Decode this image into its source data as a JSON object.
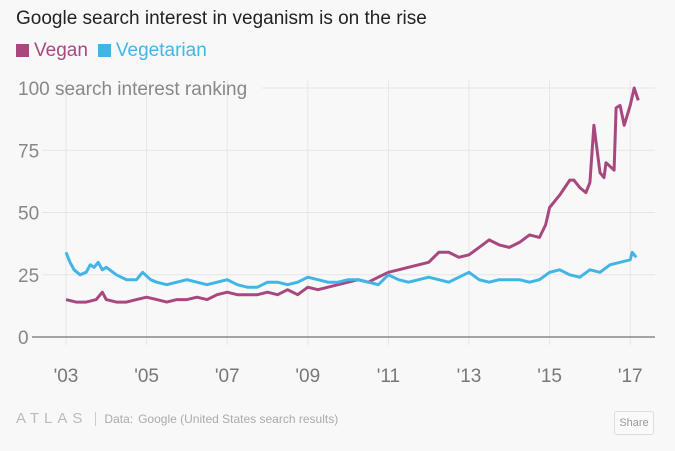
{
  "chart_data": {
    "type": "line",
    "title": "Google search interest in veganism is on the rise",
    "ylabel": "search interest ranking",
    "ylim": [
      0,
      100
    ],
    "yticks": [
      0,
      25,
      50,
      75,
      100
    ],
    "xlim": [
      2002.5,
      2017.6
    ],
    "xticks": [
      2003,
      2005,
      2007,
      2009,
      2011,
      2013,
      2015,
      2017
    ],
    "xtick_labels": [
      "'03",
      "'05",
      "'07",
      "'09",
      "'11",
      "'13",
      "'15",
      "'17"
    ],
    "grid": true,
    "legend": "top-left",
    "series": [
      {
        "name": "Vegan",
        "color": "#a8487f",
        "x": [
          2003.0,
          2003.25,
          2003.5,
          2003.75,
          2003.9,
          2004.0,
          2004.25,
          2004.5,
          2004.75,
          2005.0,
          2005.25,
          2005.5,
          2005.75,
          2006.0,
          2006.25,
          2006.5,
          2006.75,
          2007.0,
          2007.25,
          2007.5,
          2007.75,
          2008.0,
          2008.25,
          2008.5,
          2008.75,
          2009.0,
          2009.25,
          2009.5,
          2009.75,
          2010.0,
          2010.25,
          2010.5,
          2010.75,
          2011.0,
          2011.25,
          2011.5,
          2011.75,
          2012.0,
          2012.25,
          2012.5,
          2012.75,
          2013.0,
          2013.25,
          2013.5,
          2013.75,
          2014.0,
          2014.25,
          2014.5,
          2014.75,
          2014.9,
          2015.0,
          2015.25,
          2015.5,
          2015.6,
          2015.75,
          2015.9,
          2016.0,
          2016.1,
          2016.25,
          2016.35,
          2016.4,
          2016.6,
          2016.65,
          2016.75,
          2016.85,
          2017.0,
          2017.1,
          2017.2
        ],
        "values": [
          15,
          14,
          14,
          15,
          18,
          15,
          14,
          14,
          15,
          16,
          15,
          14,
          15,
          15,
          16,
          15,
          17,
          18,
          17,
          17,
          17,
          18,
          17,
          19,
          17,
          20,
          19,
          20,
          21,
          22,
          23,
          22,
          24,
          26,
          27,
          28,
          29,
          30,
          34,
          34,
          32,
          33,
          36,
          39,
          37,
          36,
          38,
          41,
          40,
          45,
          52,
          57,
          63,
          63,
          60,
          58,
          62,
          85,
          66,
          64,
          70,
          67,
          92,
          93,
          85,
          93,
          100,
          95
        ]
      },
      {
        "name": "Vegetarian",
        "color": "#41b6e6",
        "x": [
          2003.0,
          2003.1,
          2003.2,
          2003.35,
          2003.5,
          2003.6,
          2003.7,
          2003.8,
          2003.9,
          2004.0,
          2004.25,
          2004.5,
          2004.75,
          2004.9,
          2005.1,
          2005.25,
          2005.5,
          2005.75,
          2006.0,
          2006.25,
          2006.5,
          2006.75,
          2007.0,
          2007.25,
          2007.5,
          2007.75,
          2008.0,
          2008.25,
          2008.5,
          2008.75,
          2009.0,
          2009.25,
          2009.5,
          2009.75,
          2010.0,
          2010.25,
          2010.5,
          2010.75,
          2011.0,
          2011.25,
          2011.5,
          2011.75,
          2012.0,
          2012.25,
          2012.5,
          2012.75,
          2013.0,
          2013.25,
          2013.5,
          2013.75,
          2014.0,
          2014.25,
          2014.5,
          2014.75,
          2015.0,
          2015.25,
          2015.5,
          2015.75,
          2016.0,
          2016.25,
          2016.5,
          2016.75,
          2017.0,
          2017.05,
          2017.15
        ],
        "values": [
          34,
          30,
          27,
          25,
          26,
          29,
          28,
          30,
          27,
          28,
          25,
          23,
          23,
          26,
          23,
          22,
          21,
          22,
          23,
          22,
          21,
          22,
          23,
          21,
          20,
          20,
          22,
          22,
          21,
          22,
          24,
          23,
          22,
          22,
          23,
          23,
          22,
          21,
          25,
          23,
          22,
          23,
          24,
          23,
          22,
          24,
          26,
          23,
          22,
          23,
          23,
          23,
          22,
          23,
          26,
          27,
          25,
          24,
          27,
          26,
          29,
          30,
          31,
          34,
          32
        ]
      }
    ]
  },
  "footer": {
    "logo": "ATLAS",
    "data_label": "Data:",
    "source": "Google (United States search results)",
    "share_label": "Share"
  }
}
